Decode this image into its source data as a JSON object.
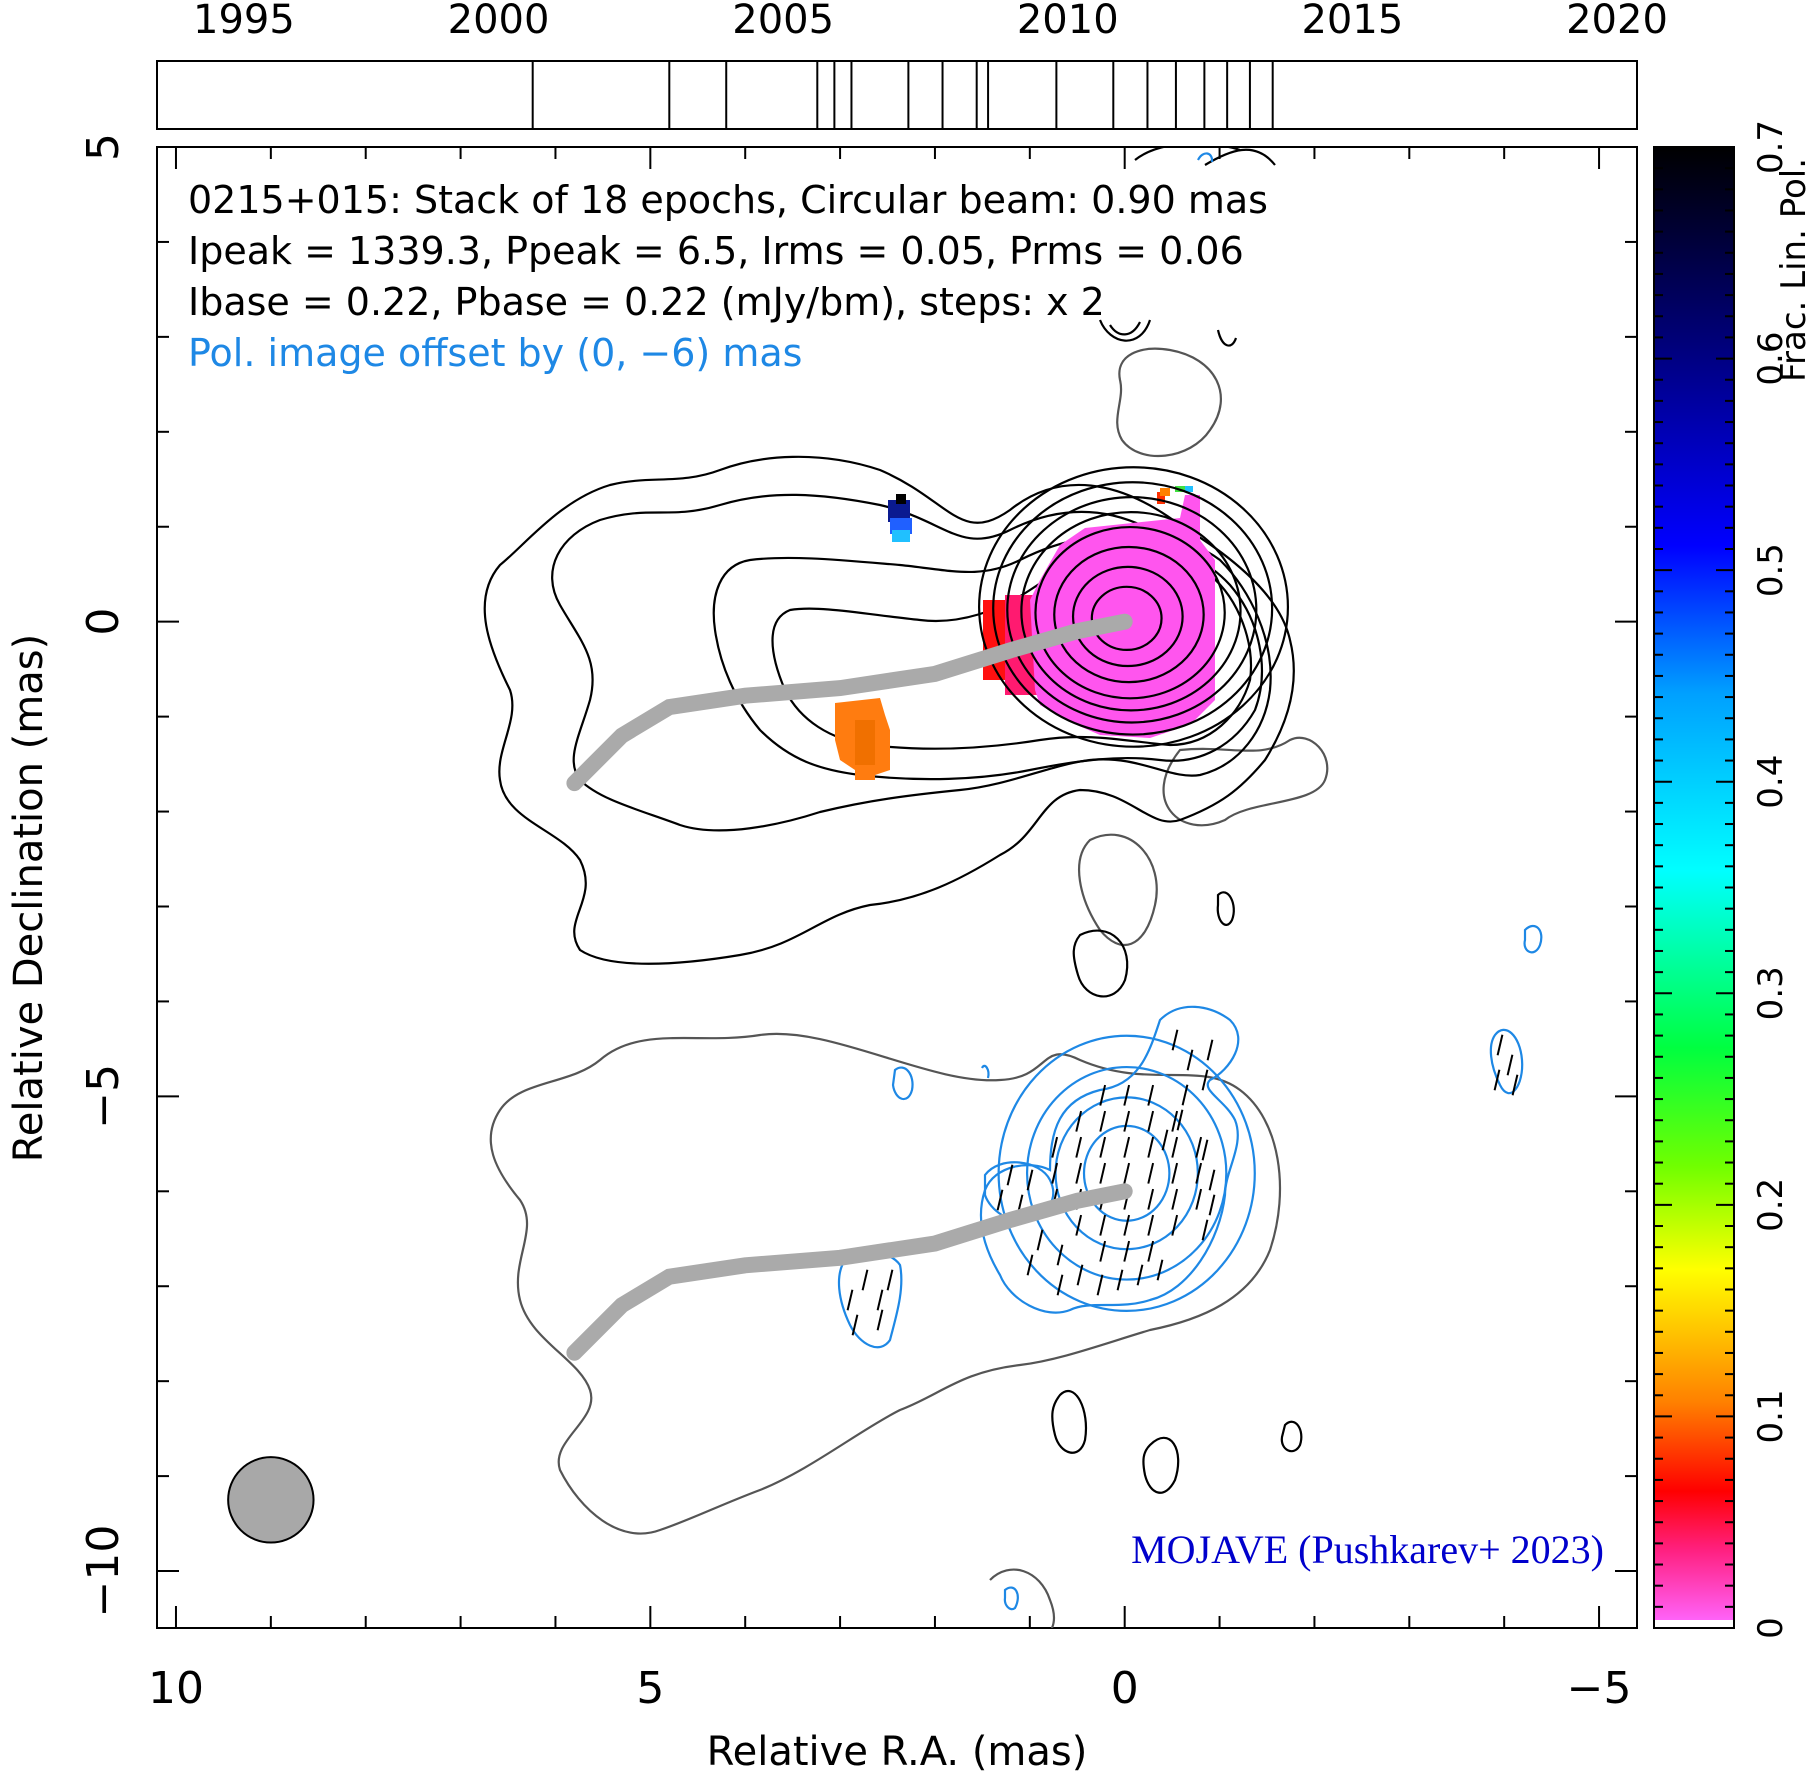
{
  "timeline": {
    "year_labels": [
      "1995",
      "2000",
      "2005",
      "2010",
      "2015",
      "2020"
    ],
    "year_ticks": [
      1995,
      2000,
      2005,
      2010,
      2015,
      2020
    ],
    "epochs": [
      2000.6,
      2003.0,
      2004.0,
      2005.6,
      2005.9,
      2006.2,
      2007.2,
      2007.8,
      2008.4,
      2008.6,
      2009.8,
      2010.8,
      2011.4,
      2011.9,
      2012.4,
      2012.8,
      2013.2,
      2013.6
    ]
  },
  "header": {
    "line1": "0215+015: Stack of 18 epochs, Circular beam: 0.90 mas",
    "line2": "Ipeak = 1339.3, Ppeak = 6.5, Irms = 0.05, Prms = 0.06",
    "line3": "Ibase = 0.22, Pbase = 0.22 (mJy/bm), steps: x 2",
    "line4": "Pol. image offset by (0, −6) mas"
  },
  "credit": "MOJAVE (Pushkarev+ 2023)",
  "colors": {
    "contour_total": "#000000",
    "contour_outer": "#555555",
    "contour_pol": "#1e88e5",
    "ridge": "#aaaaaa",
    "beam": "#a8a8a8",
    "offset_note": "#1e88e5",
    "credit": "#0000cc"
  },
  "chart_data": {
    "type": "heatmap",
    "title": "",
    "xlabel": "Relative R.A. (mas)",
    "ylabel": "Relative Declination (mas)",
    "colorbar_label": "Frac. Lin. Pol.",
    "xlim": [
      10.2,
      -5.4
    ],
    "ylim": [
      -10.6,
      5
    ],
    "x_tick_labels": [
      "10",
      "5",
      "0",
      "−5"
    ],
    "x_ticks": [
      10,
      5,
      0,
      -5
    ],
    "y_tick_labels": [
      "5",
      "0",
      "−5",
      "−10"
    ],
    "y_ticks": [
      5,
      0,
      -5,
      -10
    ],
    "colorbar_range": [
      0,
      0.7
    ],
    "colorbar_tick_labels": [
      "0",
      "0.1",
      "0.2",
      "0.3",
      "0.4",
      "0.5",
      "0.6",
      "0.7"
    ],
    "colorbar_ticks": [
      0,
      0.1,
      0.2,
      0.3,
      0.4,
      0.5,
      0.6,
      0.7
    ],
    "core": [
      0,
      0
    ],
    "ridge_line": [
      [
        0,
        0
      ],
      [
        -0.5,
        -0.1
      ],
      [
        -1.2,
        -0.3
      ],
      [
        -2,
        -0.55
      ],
      [
        -3,
        -0.7
      ],
      [
        -4,
        -0.78
      ],
      [
        -4.8,
        -0.9
      ],
      [
        -5.3,
        -1.2
      ],
      [
        -5.8,
        -1.7
      ]
    ],
    "total_intensity_contour_radii": [
      0.35,
      0.55,
      0.75,
      0.95,
      1.1,
      1.25,
      1.4,
      1.55
    ],
    "polarization_hotspots": [
      {
        "ra": 0.2,
        "dec": 0.15,
        "frac_pol": 0.01
      },
      {
        "ra": 1.2,
        "dec": 0.0,
        "frac_pol": 0.04
      },
      {
        "ra": 2.9,
        "dec": -1.3,
        "frac_pol": 0.1
      },
      {
        "ra": 2.4,
        "dec": 1.1,
        "frac_pol": 0.6
      }
    ],
    "beam_diameter_mas": 0.9,
    "beam_position": [
      9.0,
      -9.25
    ],
    "grid": false
  }
}
